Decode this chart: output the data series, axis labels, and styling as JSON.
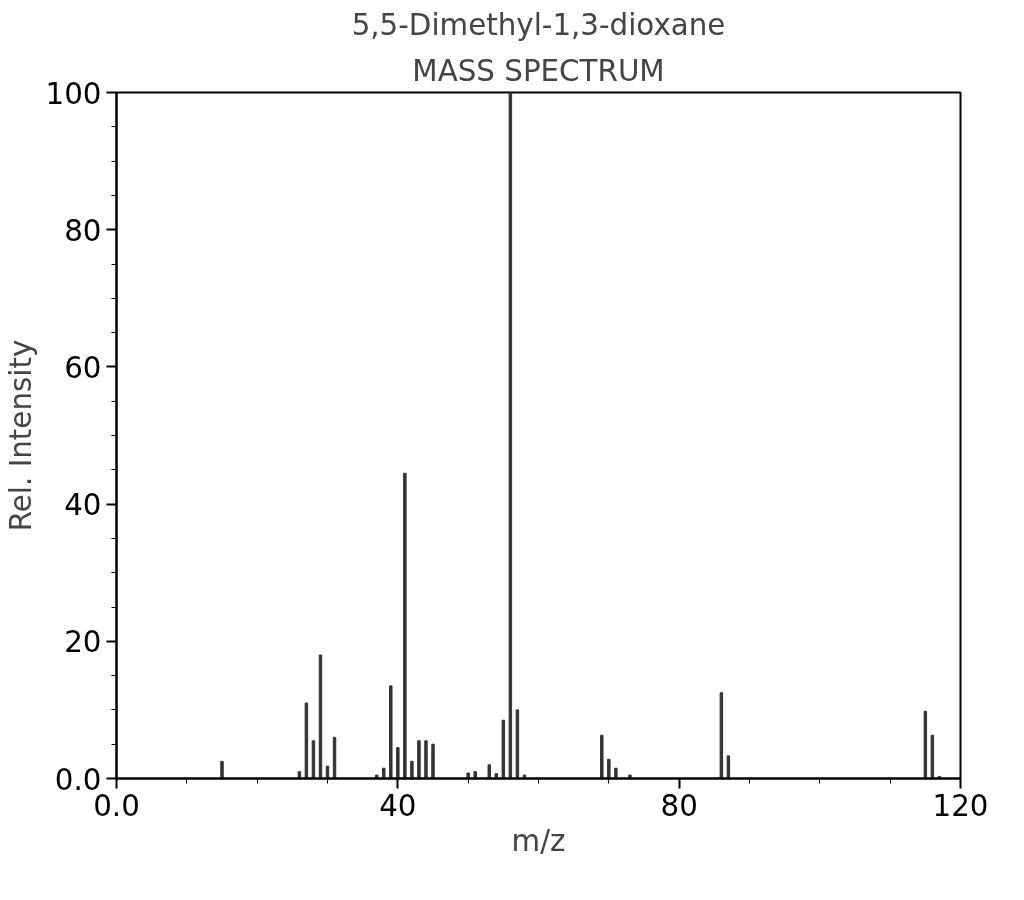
{
  "chart_data": {
    "type": "bar",
    "title": "5,5-Dimethyl-1,3-dioxane",
    "subtitle": "MASS SPECTRUM",
    "xlabel": "m/z",
    "ylabel": "Rel. Intensity",
    "x": [
      15,
      26,
      27,
      28,
      29,
      30,
      31,
      37,
      38,
      39,
      40,
      41,
      42,
      43,
      44,
      45,
      50,
      51,
      53,
      54,
      55,
      56,
      57,
      58,
      69,
      70,
      71,
      73,
      86,
      87,
      115,
      116,
      117
    ],
    "values": [
      2.5,
      1,
      11,
      5.5,
      18,
      1.8,
      6,
      0.5,
      1.5,
      13.5,
      4.5,
      44.5,
      2.5,
      5.5,
      5.5,
      5,
      0.8,
      1,
      2,
      0.7,
      8.5,
      100,
      10,
      0.5,
      6.3,
      2.8,
      1.5,
      0.5,
      12.5,
      3.3,
      9.8,
      6.3,
      0.3
    ],
    "color": "#333333",
    "xlim": [
      0,
      120
    ],
    "xticks": [
      {
        "value": 0,
        "label": "0.0"
      },
      40,
      80,
      120
    ],
    "ylim": [
      0,
      100
    ],
    "yticks": [
      {
        "value": 0,
        "label": "0.0"
      },
      20,
      40,
      60,
      80,
      100
    ],
    "grid": false
  }
}
